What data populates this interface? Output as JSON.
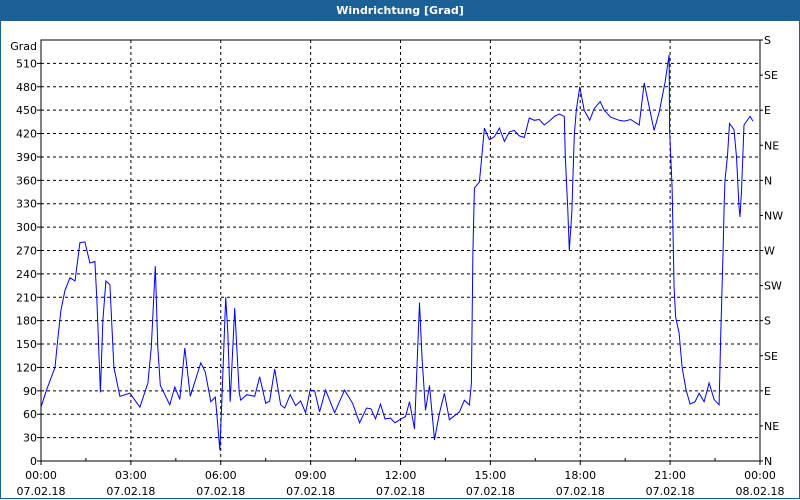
{
  "window": {
    "title": "Windrichtung [Grad]"
  },
  "chart_data": {
    "type": "line",
    "title": "Windrichtung [Grad]",
    "ylabel": "Grad",
    "ylim": [
      0,
      540
    ],
    "yticks": [
      0,
      30,
      60,
      90,
      120,
      150,
      180,
      210,
      240,
      270,
      300,
      330,
      360,
      390,
      420,
      450,
      480,
      510
    ],
    "y2ticks": [
      {
        "value": 540,
        "label": "S"
      },
      {
        "value": 495,
        "label": "SE"
      },
      {
        "value": 450,
        "label": "E"
      },
      {
        "value": 405,
        "label": "NE"
      },
      {
        "value": 360,
        "label": "N"
      },
      {
        "value": 315,
        "label": "NW"
      },
      {
        "value": 270,
        "label": "W"
      },
      {
        "value": 225,
        "label": "SW"
      },
      {
        "value": 180,
        "label": "S"
      },
      {
        "value": 135,
        "label": "SE"
      },
      {
        "value": 90,
        "label": "E"
      },
      {
        "value": 45,
        "label": "NE"
      },
      {
        "value": 0,
        "label": "N"
      }
    ],
    "xlim": [
      "07.02.18 00:00",
      "08.02.18 00:00"
    ],
    "xticks": [
      {
        "time": "00:00",
        "date": "07.02.18"
      },
      {
        "time": "03:00",
        "date": "07.02.18"
      },
      {
        "time": "06:00",
        "date": "07.02.18"
      },
      {
        "time": "09:00",
        "date": "07.02.18"
      },
      {
        "time": "12:00",
        "date": "07.02.18"
      },
      {
        "time": "15:00",
        "date": "07.02.18"
      },
      {
        "time": "18:00",
        "date": "07.02.18"
      },
      {
        "time": "21:00",
        "date": "07.02.18"
      },
      {
        "time": "00:00",
        "date": "08.02.18"
      }
    ],
    "grid": true,
    "line_color": "#0000ff",
    "series": [
      {
        "date": "07.02.18",
        "points": [
          [
            "00:00",
            69
          ],
          [
            "00:11",
            91
          ],
          [
            "00:28",
            120
          ],
          [
            "00:34",
            159
          ],
          [
            "00:40",
            194
          ],
          [
            "00:48",
            219
          ],
          [
            "00:58",
            235
          ],
          [
            "01:08",
            231
          ],
          [
            "01:18",
            280
          ],
          [
            "01:28",
            281
          ],
          [
            "01:38",
            254
          ],
          [
            "01:48",
            256
          ],
          [
            "01:52",
            206
          ],
          [
            "01:59",
            88
          ],
          [
            "02:04",
            181
          ],
          [
            "02:10",
            231
          ],
          [
            "02:18",
            226
          ],
          [
            "02:26",
            120
          ],
          [
            "02:38",
            83
          ],
          [
            "02:58",
            87
          ],
          [
            "03:18",
            69
          ],
          [
            "03:34",
            100
          ],
          [
            "03:41",
            146
          ],
          [
            "03:49",
            250
          ],
          [
            "03:54",
            146
          ],
          [
            "03:59",
            97
          ],
          [
            "04:18",
            72
          ],
          [
            "04:28",
            95
          ],
          [
            "04:38",
            79
          ],
          [
            "04:48",
            145
          ],
          [
            "04:59",
            83
          ],
          [
            "05:20",
            126
          ],
          [
            "05:29",
            114
          ],
          [
            "05:40",
            76
          ],
          [
            "05:49",
            82
          ],
          [
            "05:54",
            46
          ],
          [
            "05:58",
            14
          ],
          [
            "06:02",
            72
          ],
          [
            "06:10",
            210
          ],
          [
            "06:14",
            168
          ],
          [
            "06:19",
            76
          ],
          [
            "06:28",
            196
          ],
          [
            "06:37",
            88
          ],
          [
            "06:40",
            78
          ],
          [
            "06:52",
            85
          ],
          [
            "07:08",
            83
          ],
          [
            "07:18",
            108
          ],
          [
            "07:30",
            74
          ],
          [
            "07:38",
            77
          ],
          [
            "07:48",
            118
          ],
          [
            "08:00",
            72
          ],
          [
            "08:08",
            68
          ],
          [
            "08:19",
            85
          ],
          [
            "08:30",
            71
          ],
          [
            "08:40",
            77
          ],
          [
            "08:50",
            62
          ],
          [
            "08:59",
            91
          ],
          [
            "09:08",
            90
          ],
          [
            "09:18",
            63
          ],
          [
            "09:30",
            91
          ],
          [
            "09:48",
            62
          ],
          [
            "10:08",
            91
          ],
          [
            "10:24",
            74
          ],
          [
            "10:38",
            49
          ],
          [
            "10:52",
            68
          ],
          [
            "11:01",
            67
          ],
          [
            "11:10",
            54
          ],
          [
            "11:20",
            73
          ],
          [
            "11:29",
            54
          ],
          [
            "11:40",
            55
          ],
          [
            "11:49",
            49
          ],
          [
            "12:01",
            54
          ],
          [
            "12:10",
            57
          ],
          [
            "12:18",
            76
          ],
          [
            "12:28",
            41
          ],
          [
            "12:31",
            89
          ],
          [
            "12:38",
            203
          ],
          [
            "12:43",
            133
          ],
          [
            "12:50",
            65
          ],
          [
            "12:58",
            97
          ],
          [
            "13:08",
            27
          ],
          [
            "13:18",
            61
          ],
          [
            "13:28",
            87
          ],
          [
            "13:38",
            53
          ],
          [
            "13:58",
            63
          ],
          [
            "14:08",
            78
          ],
          [
            "14:18",
            72
          ],
          [
            "14:22",
            100
          ],
          [
            "14:25",
            267
          ],
          [
            "14:28",
            350
          ],
          [
            "14:38",
            358
          ],
          [
            "14:43",
            392
          ],
          [
            "14:48",
            427
          ],
          [
            "14:58",
            412
          ],
          [
            "15:08",
            416
          ],
          [
            "15:18",
            427
          ],
          [
            "15:28",
            410
          ],
          [
            "15:38",
            422
          ],
          [
            "15:48",
            424
          ],
          [
            "15:58",
            417
          ],
          [
            "16:08",
            415
          ],
          [
            "16:18",
            440
          ],
          [
            "16:28",
            437
          ],
          [
            "16:38",
            438
          ],
          [
            "16:48",
            431
          ],
          [
            "16:58",
            436
          ],
          [
            "17:08",
            442
          ],
          [
            "17:18",
            445
          ],
          [
            "17:28",
            442
          ],
          [
            "17:30",
            390
          ],
          [
            "17:35",
            322
          ],
          [
            "17:38",
            270
          ],
          [
            "17:43",
            318
          ],
          [
            "17:48",
            418
          ],
          [
            "17:52",
            450
          ],
          [
            "17:59",
            480
          ],
          [
            "18:08",
            450
          ],
          [
            "18:19",
            437
          ],
          [
            "18:28",
            452
          ],
          [
            "18:40",
            461
          ],
          [
            "18:48",
            450
          ],
          [
            "19:01",
            441
          ],
          [
            "19:18",
            437
          ],
          [
            "19:28",
            436
          ],
          [
            "19:41",
            438
          ],
          [
            "19:58",
            431
          ],
          [
            "20:08",
            485
          ],
          [
            "20:18",
            454
          ],
          [
            "20:28",
            424
          ],
          [
            "20:38",
            447
          ],
          [
            "20:50",
            486
          ],
          [
            "20:58",
            521
          ],
          [
            "20:59",
            424
          ],
          [
            "21:04",
            351
          ],
          [
            "21:06",
            287
          ],
          [
            "21:08",
            222
          ],
          [
            "21:11",
            185
          ],
          [
            "21:18",
            164
          ],
          [
            "21:24",
            120
          ],
          [
            "21:32",
            91
          ],
          [
            "21:40",
            73
          ],
          [
            "21:50",
            76
          ],
          [
            "21:58",
            87
          ],
          [
            "22:08",
            76
          ],
          [
            "22:18",
            100
          ],
          [
            "22:28",
            79
          ],
          [
            "22:38",
            72
          ],
          [
            "22:41",
            155
          ],
          [
            "22:46",
            270
          ],
          [
            "22:48",
            326
          ],
          [
            "22:50",
            360
          ],
          [
            "22:55",
            392
          ],
          [
            "22:59",
            433
          ],
          [
            "23:08",
            425
          ],
          [
            "23:13",
            390
          ],
          [
            "23:18",
            326
          ],
          [
            "23:20",
            313
          ],
          [
            "23:23",
            347
          ],
          [
            "23:28",
            431
          ],
          [
            "23:40",
            442
          ],
          [
            "23:46",
            436
          ]
        ]
      }
    ]
  }
}
